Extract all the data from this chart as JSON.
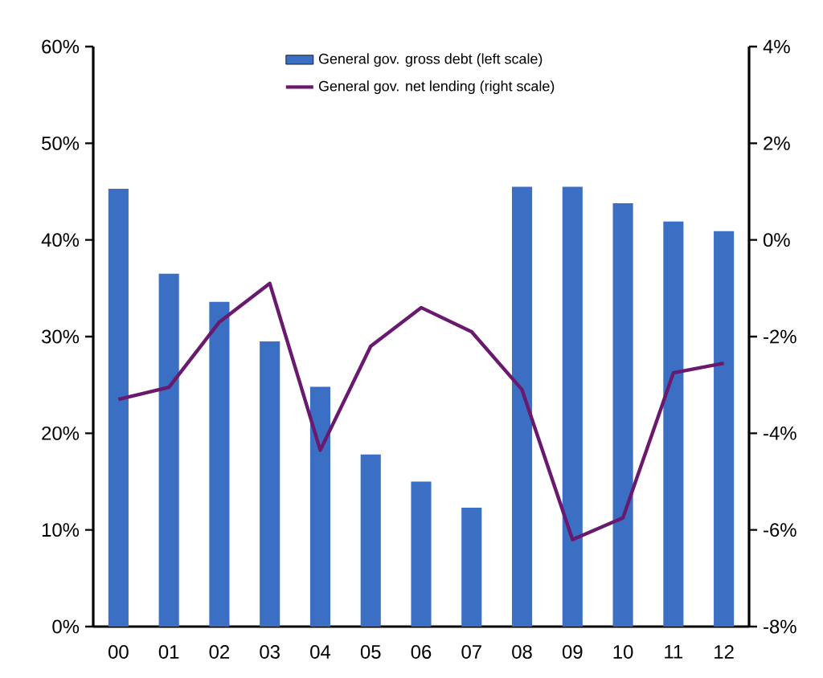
{
  "chart_data": {
    "type": "bar",
    "categories": [
      "00",
      "01",
      "02",
      "03",
      "04",
      "05",
      "06",
      "07",
      "08",
      "09",
      "10",
      "11",
      "12"
    ],
    "series": [
      {
        "name": "General gov. gross debt (left scale)",
        "color": "#3a6fc4",
        "values": [
          45.3,
          36.5,
          33.6,
          29.5,
          24.8,
          17.8,
          15.0,
          12.3,
          45.5,
          45.5,
          43.8,
          41.9,
          40.9
        ]
      },
      {
        "name": "General gov. net lending (right scale)",
        "type": "line",
        "axis": "y2",
        "color": "#6a1a6e",
        "values": [
          -3.3,
          -3.05,
          -1.7,
          -0.9,
          -4.35,
          -2.2,
          -1.4,
          -1.9,
          -3.1,
          -6.2,
          -5.75,
          -2.75,
          -2.55
        ]
      }
    ],
    "ylim": [
      0,
      60
    ],
    "yticks": [
      {
        "value": 0,
        "label": "0%"
      },
      {
        "value": 10,
        "label": "10%"
      },
      {
        "value": 20,
        "label": "20%"
      },
      {
        "value": 30,
        "label": "30%"
      },
      {
        "value": 40,
        "label": "40%"
      },
      {
        "value": 50,
        "label": "50%"
      },
      {
        "value": 60,
        "label": "60%"
      }
    ],
    "y2lim": [
      -8,
      4
    ],
    "y2ticks": [
      {
        "value": -8,
        "label": "-8%"
      },
      {
        "value": -6,
        "label": "-6%"
      },
      {
        "value": -4,
        "label": "-4%"
      },
      {
        "value": -2,
        "label": "-2%"
      },
      {
        "value": 0,
        "label": "0%"
      },
      {
        "value": 2,
        "label": "2%"
      },
      {
        "value": 4,
        "label": "4%"
      }
    ],
    "grid": false,
    "legend": "top"
  }
}
